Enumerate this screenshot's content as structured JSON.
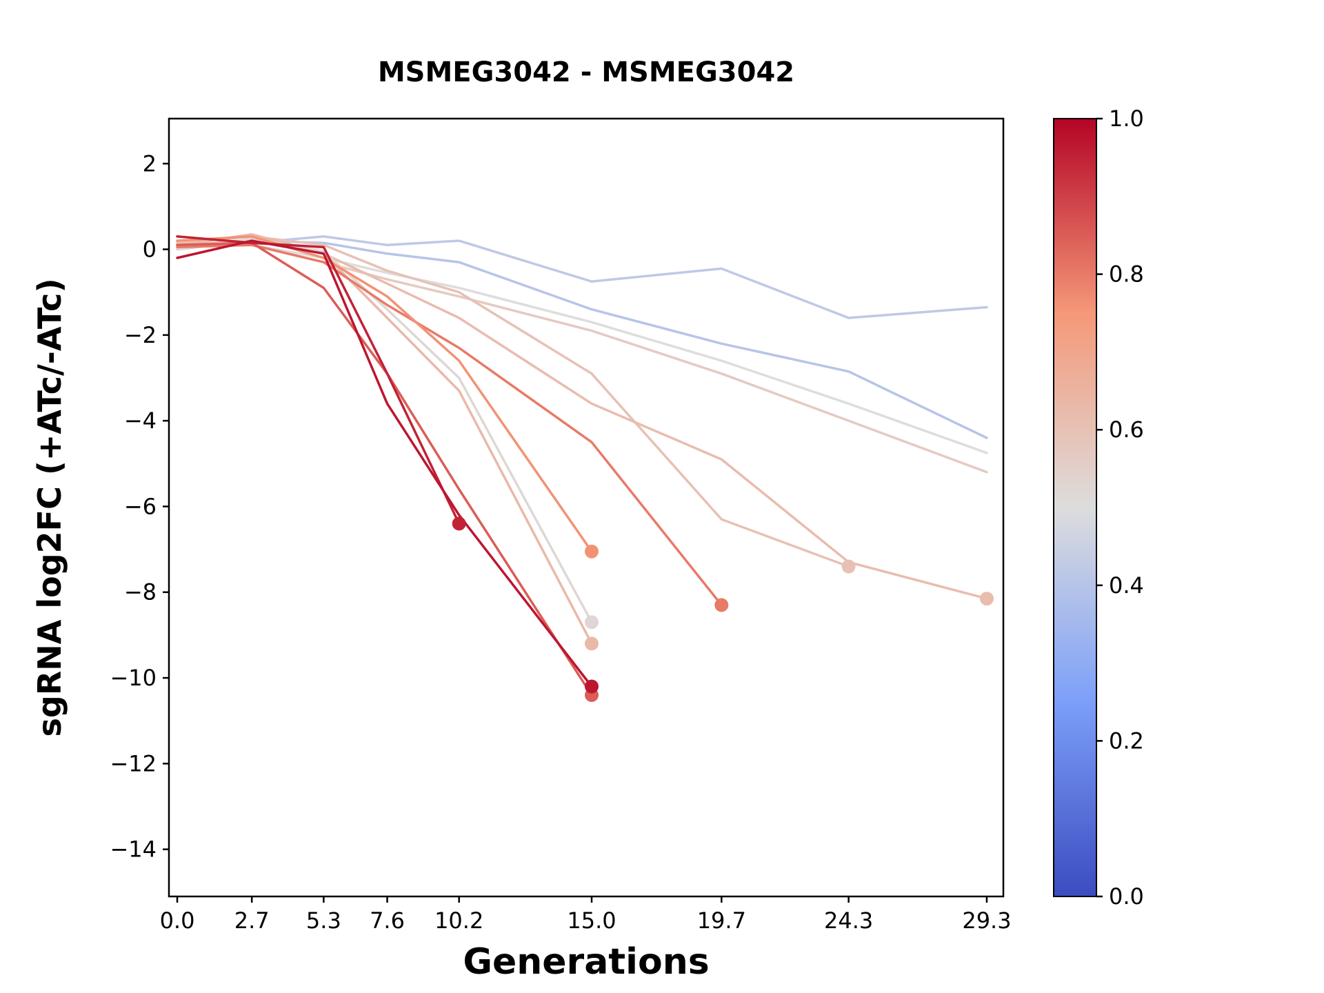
{
  "chart_data": {
    "type": "line",
    "title": "MSMEG3042 - MSMEG3042",
    "xlabel": "Generations",
    "ylabel": "sgRNA log2FC (+ATc/-ATc)",
    "xlim": [
      -0.3,
      29.9
    ],
    "ylim": [
      -15.1,
      3.05
    ],
    "grid": false,
    "x_ticks": {
      "values": [
        0.0,
        2.7,
        5.3,
        7.6,
        10.2,
        15.0,
        19.7,
        24.3,
        29.3
      ],
      "labels": [
        "0.0",
        "2.7",
        "5.3",
        "7.6",
        "10.2",
        "15.0",
        "19.7",
        "24.3",
        "29.3"
      ]
    },
    "y_ticks": {
      "values": [
        2,
        0,
        -2,
        -4,
        -6,
        -8,
        -10,
        -12,
        -14
      ],
      "labels": [
        "2",
        "0",
        "−2",
        "−4",
        "−6",
        "−8",
        "−10",
        "−12",
        "−14"
      ]
    },
    "colormap": {
      "name": "coolwarm",
      "stops": [
        "#3b4cc0",
        "#7c9ff9",
        "#dddddd",
        "#f59878",
        "#b40426"
      ],
      "offsets": [
        0,
        0.25,
        0.5,
        0.75,
        1
      ]
    },
    "colorbar": {
      "tick_values": [
        0.0,
        0.2,
        0.4,
        0.6,
        0.8,
        1.0
      ],
      "tick_labels": [
        "0.0",
        "0.2",
        "0.4",
        "0.6",
        "0.8",
        "1.0"
      ],
      "range": [
        0.0,
        1.0
      ]
    },
    "series": [
      {
        "name": "line-blue-1",
        "value": 0.42,
        "end_marker": false,
        "x": [
          0,
          2.7,
          5.3,
          7.6,
          10.2,
          15.0,
          19.7,
          24.3,
          29.3
        ],
        "y": [
          0.1,
          0.15,
          0.3,
          0.1,
          0.2,
          -0.75,
          -0.45,
          -1.6,
          -1.35
        ]
      },
      {
        "name": "line-blue-2",
        "value": 0.4,
        "end_marker": false,
        "x": [
          0,
          2.7,
          5.3,
          7.6,
          10.2,
          15.0,
          19.7,
          24.3,
          29.3
        ],
        "y": [
          0.0,
          0.2,
          0.15,
          -0.1,
          -0.3,
          -1.4,
          -2.2,
          -2.85,
          -4.4
        ]
      },
      {
        "name": "line-gray-1",
        "value": 0.5,
        "end_marker": false,
        "x": [
          0,
          2.7,
          5.3,
          7.6,
          10.2,
          15.0,
          19.7,
          24.3,
          29.3
        ],
        "y": [
          0.05,
          0.1,
          -0.2,
          -0.55,
          -0.9,
          -1.7,
          -2.6,
          -3.6,
          -4.75
        ]
      },
      {
        "name": "line-pink-1",
        "value": 0.57,
        "end_marker": false,
        "x": [
          0,
          2.7,
          5.3,
          7.6,
          10.2,
          15.0,
          19.7,
          24.3,
          29.3
        ],
        "y": [
          0.2,
          0.1,
          -0.3,
          -0.7,
          -1.1,
          -1.9,
          -2.9,
          -4.0,
          -5.2
        ]
      },
      {
        "name": "line-pink-2",
        "value": 0.6,
        "end_marker": true,
        "x": [
          0,
          2.7,
          5.3,
          7.6,
          10.2,
          15.0,
          19.7,
          24.3
        ],
        "y": [
          0.15,
          0.3,
          0.1,
          -0.5,
          -1.0,
          -2.9,
          -6.3,
          -7.4
        ]
      },
      {
        "name": "line-pink-3",
        "value": 0.62,
        "end_marker": true,
        "x": [
          0,
          2.7,
          5.3,
          7.6,
          10.2,
          15.0,
          19.7,
          24.3,
          29.3
        ],
        "y": [
          0.1,
          0.2,
          -0.1,
          -0.8,
          -1.6,
          -3.6,
          -4.9,
          -7.3,
          -8.15
        ]
      },
      {
        "name": "line-cream-1",
        "value": 0.63,
        "end_marker": true,
        "x": [
          0,
          2.7,
          5.3,
          7.6,
          10.2,
          15.0
        ],
        "y": [
          0.1,
          0.35,
          -0.1,
          -1.6,
          -3.3,
          -9.2
        ]
      },
      {
        "name": "line-gray-2",
        "value": 0.52,
        "end_marker": true,
        "x": [
          0,
          2.7,
          5.3,
          7.6,
          10.2,
          15.0
        ],
        "y": [
          0.0,
          0.25,
          -0.05,
          -1.4,
          -3.0,
          -8.7
        ]
      },
      {
        "name": "line-orange-1",
        "value": 0.8,
        "end_marker": true,
        "x": [
          0,
          2.7,
          5.3,
          7.6,
          10.2,
          15.0,
          19.7
        ],
        "y": [
          0.05,
          0.1,
          -0.3,
          -1.3,
          -2.3,
          -4.5,
          -8.3
        ]
      },
      {
        "name": "line-orange-2",
        "value": 0.76,
        "end_marker": true,
        "x": [
          0,
          2.7,
          5.3,
          7.6,
          10.2,
          15.0
        ],
        "y": [
          0.2,
          0.3,
          -0.2,
          -1.1,
          -2.6,
          -7.05
        ]
      },
      {
        "name": "line-red-1",
        "value": 0.85,
        "end_marker": true,
        "x": [
          0,
          2.7,
          5.3,
          7.6,
          10.2,
          15.0
        ],
        "y": [
          0.1,
          0.15,
          -0.9,
          -2.9,
          -5.6,
          -10.4
        ]
      },
      {
        "name": "line-darkred-1",
        "value": 0.95,
        "end_marker": true,
        "x": [
          0,
          2.7,
          5.3,
          7.6,
          10.2
        ],
        "y": [
          0.3,
          0.15,
          0.05,
          -2.9,
          -6.4
        ]
      },
      {
        "name": "line-darkred-2",
        "value": 0.97,
        "end_marker": true,
        "x": [
          0,
          2.7,
          5.3,
          7.6,
          10.2,
          15.0
        ],
        "y": [
          -0.2,
          0.2,
          -0.1,
          -3.6,
          -6.2,
          -10.2
        ]
      }
    ]
  },
  "layout_colors": {
    "axes_edge": "#000000",
    "background": "#ffffff"
  }
}
